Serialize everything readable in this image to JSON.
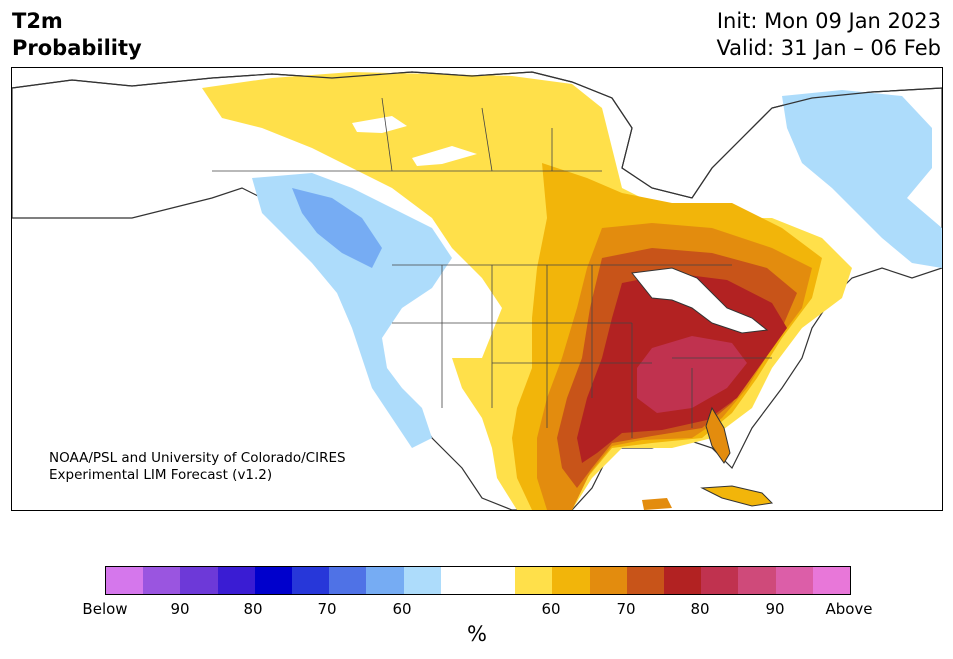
{
  "header": {
    "title_line1": "T2m",
    "title_line2": "Probability",
    "init": "Init: Mon 09 Jan 2023",
    "valid": "Valid: 31 Jan – 06 Feb"
  },
  "credit": {
    "line1": "NOAA/PSL and University of Colorado/CIRES",
    "line2": "Experimental LIM Forecast (v1.2)"
  },
  "colorbar": {
    "colors": [
      "#d577ec",
      "#9a55e0",
      "#6d39d8",
      "#3a1cd3",
      "#0000cc",
      "#2737d9",
      "#4f72e6",
      "#76acf3",
      "#addcfb",
      "#ffffff",
      "#ffffff",
      "#ffe04a",
      "#f2b50a",
      "#e38c0e",
      "#c85419",
      "#b22222",
      "#c0324f",
      "#cf4a7a",
      "#dc5ea8",
      "#e877d9"
    ],
    "tick_labels": [
      "Below",
      "90",
      "80",
      "70",
      "60",
      "60",
      "70",
      "80",
      "90",
      "Above"
    ],
    "unit": "%"
  },
  "map_colors": {
    "yellow": "#ffe04a",
    "gold": "#f2b50a",
    "orange": "#e38c0e",
    "rust": "#c85419",
    "red": "#b22222",
    "rose": "#c0324f",
    "light_blue": "#addcfb",
    "blue": "#76acf3",
    "outline": "#333333"
  }
}
